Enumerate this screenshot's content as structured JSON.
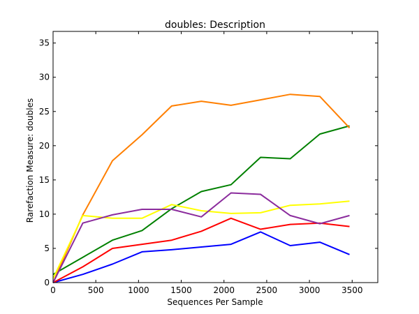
{
  "chart_data": {
    "type": "line",
    "title": "doubles: Description",
    "xlabel": "Sequences Per Sample",
    "ylabel": "Rarefaction Measure: doubles",
    "xlim": [
      0,
      3800
    ],
    "ylim": [
      0,
      36.7
    ],
    "xticks": [
      0,
      500,
      1000,
      1500,
      2000,
      2500,
      3000,
      3500
    ],
    "yticks": [
      0,
      5,
      10,
      15,
      20,
      25,
      30,
      35
    ],
    "grid": false,
    "x": [
      1,
      348,
      695,
      1041,
      1388,
      1735,
      2082,
      2428,
      2775,
      3122,
      3469
    ],
    "series": [
      {
        "color": "#0000ff",
        "values": [
          0.0,
          1.2,
          2.7,
          4.5,
          4.8,
          5.2,
          5.6,
          7.4,
          5.4,
          5.9,
          4.1
        ]
      },
      {
        "color": "#ff0000",
        "values": [
          0.0,
          2.3,
          5.0,
          5.6,
          6.2,
          7.5,
          9.4,
          7.8,
          8.5,
          8.7,
          8.2
        ]
      },
      {
        "color": "#008000",
        "values": [
          1.2,
          3.7,
          6.2,
          7.6,
          10.8,
          13.3,
          14.3,
          18.3,
          18.1,
          21.7,
          22.9
        ]
      },
      {
        "color": "#ff7f00",
        "values": [
          0.0,
          9.9,
          17.8,
          21.6,
          25.8,
          26.5,
          25.9,
          26.7,
          27.5,
          27.2,
          22.6
        ]
      },
      {
        "color": "#ffff00",
        "values": [
          0.6,
          9.8,
          9.4,
          9.4,
          11.4,
          10.5,
          10.1,
          10.2,
          11.3,
          11.5,
          11.9
        ]
      },
      {
        "color": "#8b2c9d",
        "values": [
          0.0,
          8.7,
          9.9,
          10.7,
          10.7,
          9.6,
          13.1,
          12.9,
          9.8,
          8.6,
          9.8
        ]
      }
    ]
  }
}
